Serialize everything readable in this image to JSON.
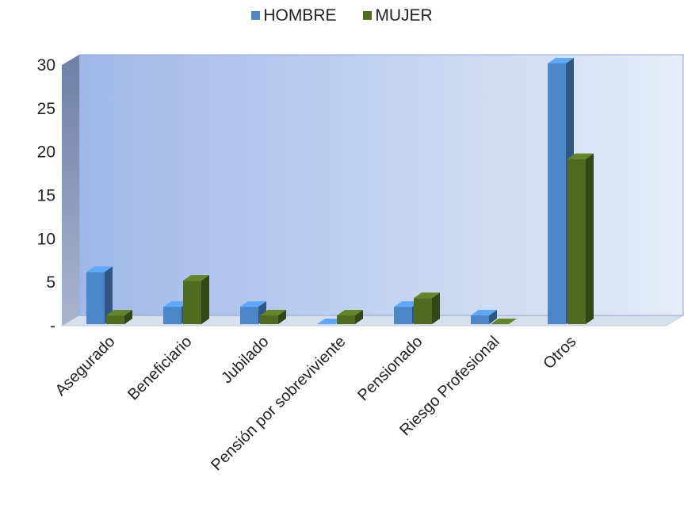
{
  "chart_data": {
    "type": "bar",
    "categories": [
      "Asegurado",
      "Beneficiario",
      "Jubilado",
      "Pensión por sobreviviente",
      "Pensionado",
      "Riesgo Profesional",
      "Otros"
    ],
    "series": [
      {
        "name": "HOMBRE",
        "color": "#4a86c8",
        "values": [
          6,
          2,
          2,
          0,
          2,
          1,
          30
        ]
      },
      {
        "name": "MUJER",
        "color": "#4f6b20",
        "values": [
          1,
          5,
          1,
          1,
          3,
          0,
          19
        ]
      }
    ],
    "y_ticks": [
      "-",
      "5",
      "10",
      "15",
      "20",
      "25",
      "30"
    ],
    "ylim": [
      0,
      30
    ],
    "legend_position": "top-center",
    "grid": false,
    "xlabel": "",
    "ylabel": ""
  }
}
